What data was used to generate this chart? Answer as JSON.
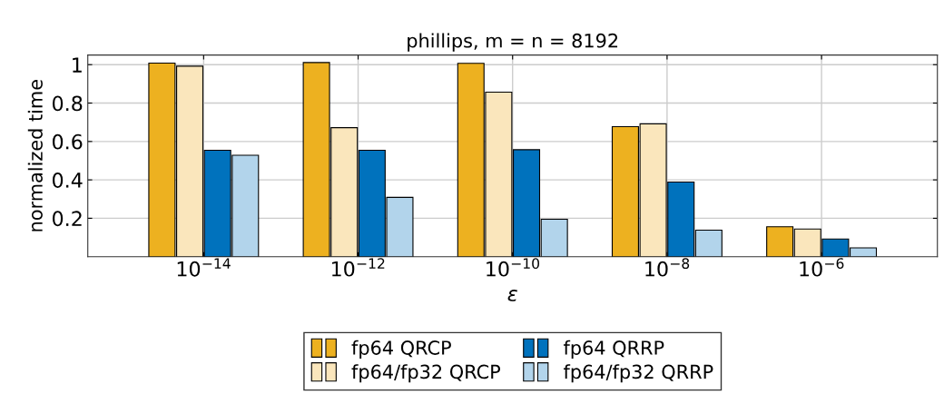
{
  "chart_data": {
    "type": "bar",
    "title": "phillips, m = n = 8192",
    "xlabel": "ε",
    "ylabel": "normalized time",
    "categories": [
      "10$^{−14}$",
      "10$^{−12}$",
      "10$^{−10}$",
      "10$^{−8}$",
      "10$^{−6}$"
    ],
    "series": [
      {
        "name": "fp64 QRCP",
        "color": "#edb120",
        "values": [
          1.008,
          1.011,
          1.007,
          0.677,
          0.156
        ]
      },
      {
        "name": "fp64/fp32 QRCP",
        "color": "#fae6bc",
        "values": [
          0.992,
          0.672,
          0.857,
          0.692,
          0.144
        ]
      },
      {
        "name": "fp64 QRRP",
        "color": "#0072bd",
        "values": [
          0.554,
          0.554,
          0.557,
          0.389,
          0.092
        ]
      },
      {
        "name": "fp64/fp32 QRRP",
        "color": "#b2d4eb",
        "values": [
          0.528,
          0.309,
          0.195,
          0.138,
          0.046
        ]
      }
    ],
    "ylim": [
      0,
      1.05
    ],
    "yticks": [
      0.2,
      0.4,
      0.6,
      0.8,
      1
    ],
    "grid": true,
    "legend": "bottom"
  }
}
